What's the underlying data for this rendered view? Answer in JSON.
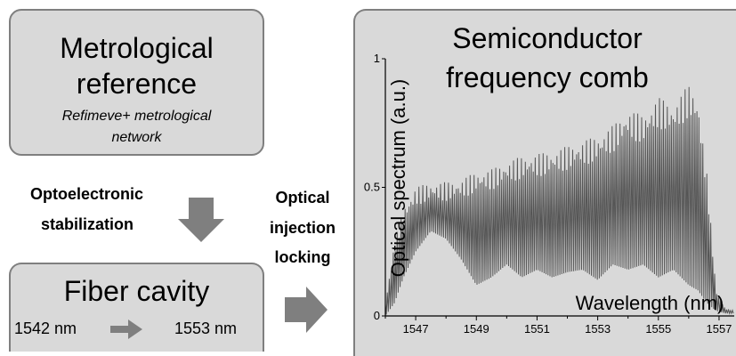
{
  "reference_box": {
    "title_line1": "Metrological",
    "title_line2": "reference",
    "subtitle_line1": "Refimeve+ metrological",
    "subtitle_line2": "network"
  },
  "stabilization_label": {
    "line1": "Optoelectronic",
    "line2": "stabilization"
  },
  "injection_label": {
    "line1": "Optical",
    "line2": "injection",
    "line3": "locking"
  },
  "fiber_box": {
    "title": "Fiber cavity",
    "from_wavelength": "1542 nm",
    "to_wavelength": "1553 nm"
  },
  "comb_panel": {
    "title_line1": "Semiconductor",
    "title_line2": "frequency comb"
  },
  "chart_data": {
    "type": "line",
    "title": "",
    "xlabel": "Wavelength (nm)",
    "ylabel": "Optical spectrum (a.u.)",
    "xlim": [
      1546,
      1557.5
    ],
    "ylim": [
      0,
      1
    ],
    "xticks": [
      "1547",
      "1549",
      "1551",
      "1553",
      "1555",
      "1557"
    ],
    "yticks": [
      "0",
      "0.5",
      "1"
    ],
    "series": [
      {
        "envelope_x": [
          1546.0,
          1546.3,
          1546.6,
          1547.0,
          1547.5,
          1548.0,
          1548.5,
          1549.0,
          1549.5,
          1550.0,
          1550.5,
          1551.0,
          1551.5,
          1552.0,
          1552.5,
          1553.0,
          1553.5,
          1554.0,
          1554.5,
          1555.0,
          1555.5,
          1556.0,
          1556.3,
          1556.6,
          1556.9,
          1557.2,
          1557.5
        ],
        "envelope_max": [
          0.05,
          0.28,
          0.42,
          0.5,
          0.52,
          0.52,
          0.53,
          0.56,
          0.57,
          0.6,
          0.62,
          0.63,
          0.64,
          0.66,
          0.68,
          0.7,
          0.74,
          0.8,
          0.78,
          0.85,
          0.82,
          0.9,
          0.85,
          0.55,
          0.1,
          0.03,
          0.02
        ],
        "envelope_min": [
          0.0,
          0.05,
          0.15,
          0.25,
          0.33,
          0.3,
          0.22,
          0.12,
          0.15,
          0.2,
          0.15,
          0.18,
          0.15,
          0.17,
          0.18,
          0.14,
          0.2,
          0.18,
          0.2,
          0.15,
          0.18,
          0.12,
          0.1,
          0.05,
          0.02,
          0.01,
          0.01
        ]
      }
    ]
  },
  "colors": {
    "box_fill": "#d9d9d9",
    "box_border": "#7f7f7f",
    "arrow": "#7f7f7f",
    "trace": "#555555"
  }
}
